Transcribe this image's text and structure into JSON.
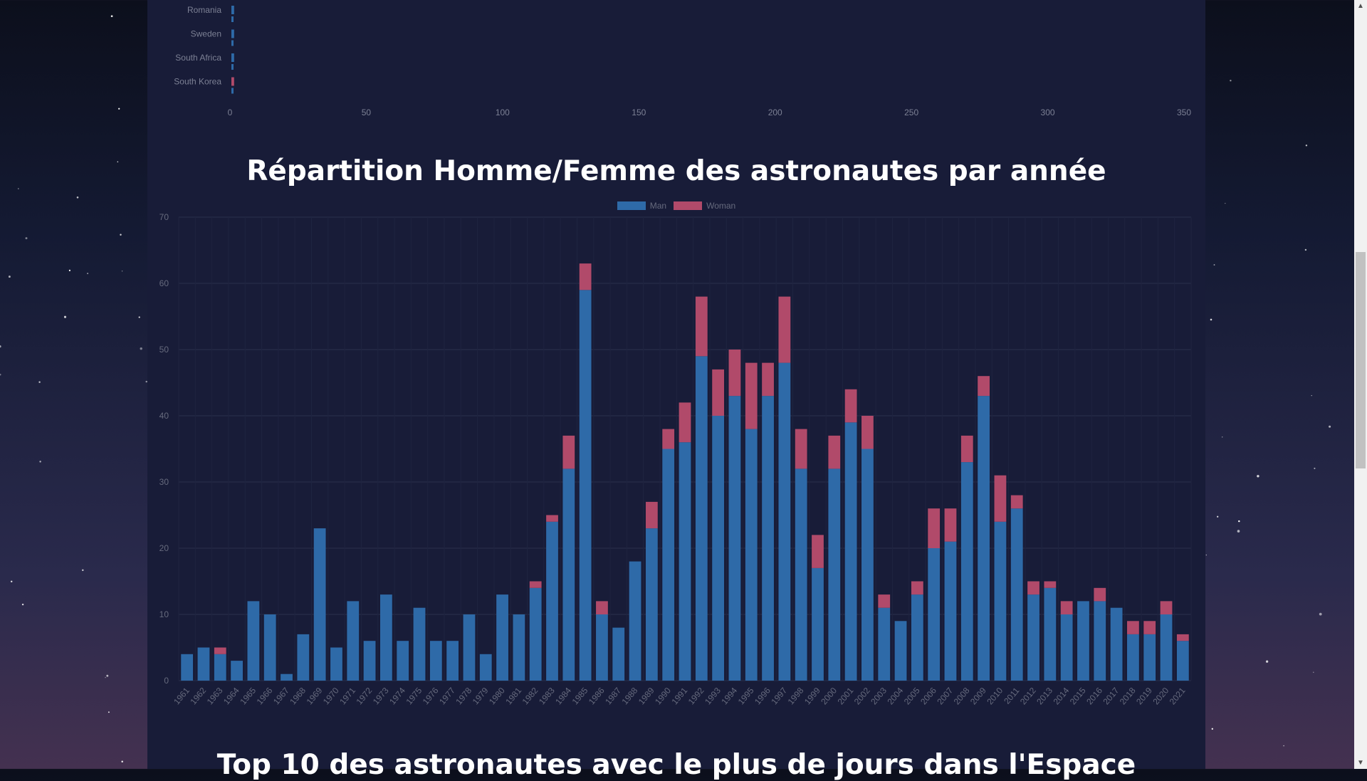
{
  "country_chart": {
    "type": "bar",
    "orientation": "horizontal",
    "countries": [
      "Romania",
      "Sweden",
      "South Africa",
      "South Korea"
    ],
    "series": [
      {
        "name": "Man",
        "values": [
          1,
          1,
          1,
          0
        ],
        "color": "#2e6aa8"
      },
      {
        "name": "Woman",
        "values": [
          0,
          0,
          0,
          1
        ],
        "color": "#b14a6a"
      }
    ],
    "xticks": [
      "0",
      "50",
      "100",
      "150",
      "200",
      "250",
      "300",
      "350"
    ],
    "xlim": [
      0,
      350
    ]
  },
  "main_title": "Répartition Homme/Femme des astronautes par année",
  "legend": [
    {
      "label": "Man",
      "color": "#2e6aa8"
    },
    {
      "label": "Woman",
      "color": "#b14a6a"
    }
  ],
  "chart_data": {
    "type": "bar",
    "stacked": true,
    "title": "Répartition Homme/Femme des astronautes par année",
    "categories": [
      "1961",
      "1962",
      "1963",
      "1964",
      "1965",
      "1966",
      "1967",
      "1968",
      "1969",
      "1970",
      "1971",
      "1972",
      "1973",
      "1974",
      "1975",
      "1976",
      "1977",
      "1978",
      "1979",
      "1980",
      "1981",
      "1982",
      "1983",
      "1984",
      "1985",
      "1986",
      "1987",
      "1988",
      "1989",
      "1990",
      "1991",
      "1992",
      "1993",
      "1994",
      "1995",
      "1996",
      "1997",
      "1998",
      "1999",
      "2000",
      "2001",
      "2002",
      "2003",
      "2004",
      "2005",
      "2006",
      "2007",
      "2008",
      "2009",
      "2010",
      "2011",
      "2012",
      "2013",
      "2014",
      "2015",
      "2016",
      "2017",
      "2018",
      "2019",
      "2020",
      "2021"
    ],
    "series": [
      {
        "name": "Man",
        "color": "#2e6aa8",
        "values": [
          4,
          5,
          4,
          3,
          12,
          10,
          1,
          7,
          23,
          5,
          12,
          6,
          13,
          6,
          11,
          6,
          6,
          10,
          4,
          13,
          10,
          14,
          24,
          32,
          59,
          10,
          8,
          18,
          23,
          35,
          36,
          49,
          40,
          43,
          38,
          43,
          48,
          32,
          17,
          32,
          39,
          35,
          11,
          9,
          13,
          20,
          21,
          33,
          43,
          24,
          26,
          13,
          14,
          10,
          12,
          12,
          11,
          7,
          7,
          10,
          6
        ]
      },
      {
        "name": "Woman",
        "color": "#b14a6a",
        "values": [
          0,
          0,
          1,
          0,
          0,
          0,
          0,
          0,
          0,
          0,
          0,
          0,
          0,
          0,
          0,
          0,
          0,
          0,
          0,
          0,
          0,
          1,
          1,
          5,
          4,
          2,
          0,
          0,
          4,
          3,
          6,
          9,
          7,
          7,
          10,
          5,
          10,
          6,
          5,
          5,
          5,
          5,
          2,
          0,
          2,
          6,
          5,
          4,
          3,
          7,
          2,
          2,
          1,
          2,
          0,
          2,
          0,
          2,
          2,
          2,
          1
        ]
      }
    ],
    "ylim": [
      0,
      70
    ],
    "yticks": [
      "0",
      "10",
      "20",
      "30",
      "40",
      "50",
      "60",
      "70"
    ],
    "legend_position": "top",
    "grid": true
  },
  "bottom_title": "Top 10 des astronautes avec le plus de jours dans l'Espace"
}
